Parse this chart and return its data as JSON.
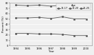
{
  "years": [
    1994,
    1995,
    1996,
    1997,
    1998,
    1999,
    2000
  ],
  "series": [
    {
      "label": "21-25",
      "values": [
        76,
        75,
        76,
        74,
        76,
        72,
        72
      ],
      "color": "#555555",
      "linestyle": "-",
      "marker": "s",
      "markersize": 1.8
    },
    {
      "label": "18-20",
      "values": [
        52,
        52,
        53,
        51,
        54,
        50,
        50
      ],
      "color": "#555555",
      "linestyle": "-",
      "marker": "s",
      "markersize": 1.8
    },
    {
      "label": "12-17",
      "values": [
        23,
        23,
        22,
        22,
        21,
        19,
        19
      ],
      "color": "#555555",
      "linestyle": "-",
      "marker": "s",
      "markersize": 1.8
    }
  ],
  "xlabel": "Year",
  "ylabel": "Percent (%)",
  "ylim": [
    0,
    80
  ],
  "yticks": [
    0,
    10,
    20,
    30,
    40,
    50,
    60,
    70,
    80
  ],
  "xlim": [
    1993.5,
    2000.5
  ],
  "legend_title": "Age",
  "legend_labels": [
    "12-17",
    "18-20",
    "21-25"
  ],
  "background_color": "#f0f0f0",
  "grid_color": "#ffffff"
}
